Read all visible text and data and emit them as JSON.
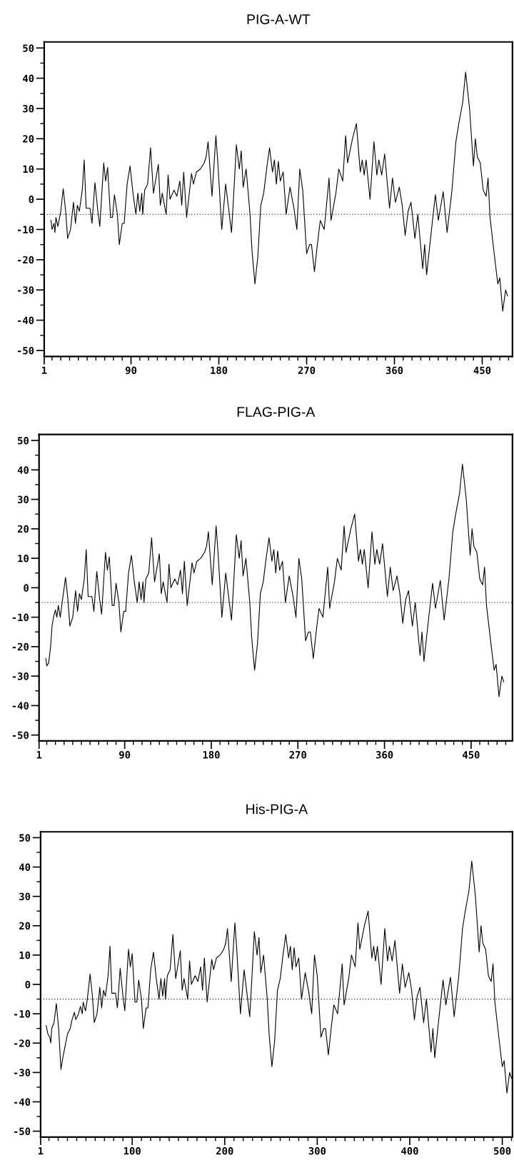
{
  "chart_data": [
    {
      "type": "line",
      "title": "PIG-A-WT",
      "xlim": [
        1,
        481
      ],
      "ylim": [
        -52,
        52
      ],
      "xticks": [
        1,
        {
          "value": 9,
          "label": null
        },
        {
          "value": 18,
          "label": null
        },
        {
          "value": 27,
          "label": null
        },
        {
          "value": 36,
          "label": null
        },
        {
          "value": 45,
          "label": null
        },
        {
          "value": 54,
          "label": null
        },
        {
          "value": 63,
          "label": null
        },
        {
          "value": 72,
          "label": null
        },
        {
          "value": 81,
          "label": null
        },
        90,
        {
          "value": 99,
          "label": null
        },
        {
          "value": 108,
          "label": null
        },
        {
          "value": 117,
          "label": null
        },
        {
          "value": 126,
          "label": null
        },
        {
          "value": 135,
          "label": null
        },
        {
          "value": 144,
          "label": null
        },
        {
          "value": 153,
          "label": null
        },
        {
          "value": 162,
          "label": null
        },
        {
          "value": 171,
          "label": null
        },
        180,
        {
          "value": 189,
          "label": null
        },
        {
          "value": 198,
          "label": null
        },
        {
          "value": 207,
          "label": null
        },
        {
          "value": 216,
          "label": null
        },
        {
          "value": 225,
          "label": null
        },
        {
          "value": 234,
          "label": null
        },
        {
          "value": 243,
          "label": null
        },
        {
          "value": 252,
          "label": null
        },
        {
          "value": 261,
          "label": null
        },
        270,
        {
          "value": 279,
          "label": null
        },
        {
          "value": 288,
          "label": null
        },
        {
          "value": 297,
          "label": null
        },
        {
          "value": 306,
          "label": null
        },
        {
          "value": 315,
          "label": null
        },
        {
          "value": 324,
          "label": null
        },
        {
          "value": 333,
          "label": null
        },
        {
          "value": 342,
          "label": null
        },
        {
          "value": 351,
          "label": null
        },
        360,
        {
          "value": 369,
          "label": null
        },
        {
          "value": 378,
          "label": null
        },
        {
          "value": 387,
          "label": null
        },
        {
          "value": 396,
          "label": null
        },
        {
          "value": 405,
          "label": null
        },
        {
          "value": 414,
          "label": null
        },
        {
          "value": 423,
          "label": null
        },
        {
          "value": 432,
          "label": null
        },
        {
          "value": 441,
          "label": null
        },
        450,
        {
          "value": 459,
          "label": null
        },
        {
          "value": 468,
          "label": null
        },
        {
          "value": 477,
          "label": null
        }
      ],
      "yticks": [
        -50,
        {
          "value": -45,
          "label": null
        },
        -40,
        {
          "value": -35,
          "label": null
        },
        -30,
        {
          "value": -25,
          "label": null
        },
        -20,
        {
          "value": -15,
          "label": null
        },
        -10,
        {
          "value": -5,
          "label": null
        },
        0,
        {
          "value": 5,
          "label": null
        },
        10,
        {
          "value": 15,
          "label": null
        },
        20,
        {
          "value": 25,
          "label": null
        },
        30,
        {
          "value": 35,
          "label": null
        },
        40,
        {
          "value": 45,
          "label": null
        },
        50
      ],
      "ref_lines": [
        {
          "axis": "y",
          "value": -5,
          "color": "#000000",
          "line_style": "dotted"
        }
      ],
      "series": [
        {
          "color": "#000000",
          "x": [
            8,
            9,
            11,
            12,
            13,
            15,
            18,
            20.5,
            23,
            25,
            28,
            31,
            33,
            35,
            37,
            40,
            42,
            44,
            48,
            50,
            53,
            56,
            58,
            62,
            64,
            66,
            69,
            71,
            73,
            76,
            78,
            81,
            83,
            86,
            89,
            92,
            95,
            97,
            99,
            101,
            102,
            104,
            107,
            110,
            113,
            118,
            120,
            122,
            126,
            128,
            130,
            134,
            137,
            140,
            142,
            144,
            147,
            152,
            154,
            157,
            161,
            165,
            167,
            169,
            171,
            173,
            177,
            179,
            183,
            187,
            190,
            193,
            195,
            198,
            201,
            203,
            205,
            208,
            212,
            214,
            217,
            220,
            223,
            226,
            229,
            232,
            235,
            237,
            239,
            241,
            243,
            246,
            249,
            253,
            257,
            260,
            263,
            266,
            270,
            273,
            275,
            278,
            281,
            284,
            288,
            293,
            295,
            300,
            303,
            307,
            310,
            312,
            317,
            321,
            325,
            327,
            329,
            331,
            335,
            339,
            342,
            344,
            347,
            350,
            355,
            358,
            361,
            365,
            368,
            371,
            374,
            377,
            381,
            384,
            389,
            391,
            393,
            397,
            402,
            405,
            410,
            414,
            419,
            423,
            426,
            430,
            433,
            437,
            441,
            443,
            445,
            448,
            451,
            454,
            456,
            458,
            463,
            466,
            468,
            471,
            474,
            476
          ],
          "values": [
            -7,
            -10,
            -8,
            -11,
            -6,
            -9,
            -4,
            3.5,
            -4,
            -13,
            -10,
            -1,
            -8,
            -2,
            -4,
            3,
            13,
            -3,
            -3,
            -8,
            5.5,
            -4,
            -9,
            12,
            6,
            10.5,
            -6,
            -6,
            1.5,
            -5,
            -15,
            -8,
            -8,
            5,
            11,
            2,
            -5,
            2,
            -4,
            2,
            -5,
            3,
            5,
            17,
            2,
            11.5,
            -2,
            2,
            -5,
            8,
            0,
            3,
            1,
            6,
            -2,
            9,
            -6,
            8.5,
            5,
            9,
            10,
            12,
            14,
            19,
            10,
            1,
            21,
            12,
            -10,
            5,
            -3,
            -11,
            0,
            18,
            10,
            16,
            4,
            10,
            -5,
            -17,
            -28,
            -19,
            -2,
            2,
            10,
            17,
            9,
            13,
            5,
            12.5,
            6,
            9,
            -5,
            4,
            -3,
            -10,
            10,
            3,
            -18,
            -15,
            -15,
            -24,
            -15,
            -7,
            -10,
            7,
            -7,
            2,
            10,
            6,
            21,
            12,
            20,
            25,
            9,
            13,
            8,
            13,
            0,
            19,
            8,
            13,
            8,
            15,
            -3,
            7,
            -1,
            4,
            -2,
            -12,
            -4,
            -1,
            -13,
            -5,
            -23,
            -15,
            -25,
            -13,
            1.5,
            -7,
            2.5,
            -11,
            3,
            19,
            25,
            32,
            42,
            30,
            11,
            20,
            14,
            12,
            3,
            1,
            7,
            -6,
            -20,
            -28,
            -26,
            -37,
            -30,
            -32
          ]
        }
      ]
    },
    {
      "type": "line",
      "title": "FLAG-PIG-A",
      "xlim": [
        1,
        493
      ],
      "ylim": [
        -52,
        52
      ],
      "xticks": [
        1,
        {
          "value": 9,
          "label": null
        },
        {
          "value": 18,
          "label": null
        },
        {
          "value": 27,
          "label": null
        },
        {
          "value": 36,
          "label": null
        },
        {
          "value": 45,
          "label": null
        },
        {
          "value": 54,
          "label": null
        },
        {
          "value": 63,
          "label": null
        },
        {
          "value": 72,
          "label": null
        },
        {
          "value": 81,
          "label": null
        },
        90,
        {
          "value": 99,
          "label": null
        },
        {
          "value": 108,
          "label": null
        },
        {
          "value": 117,
          "label": null
        },
        {
          "value": 126,
          "label": null
        },
        {
          "value": 135,
          "label": null
        },
        {
          "value": 144,
          "label": null
        },
        {
          "value": 153,
          "label": null
        },
        {
          "value": 162,
          "label": null
        },
        {
          "value": 171,
          "label": null
        },
        180,
        {
          "value": 189,
          "label": null
        },
        {
          "value": 198,
          "label": null
        },
        {
          "value": 207,
          "label": null
        },
        {
          "value": 216,
          "label": null
        },
        {
          "value": 225,
          "label": null
        },
        {
          "value": 234,
          "label": null
        },
        {
          "value": 243,
          "label": null
        },
        {
          "value": 252,
          "label": null
        },
        {
          "value": 261,
          "label": null
        },
        270,
        {
          "value": 279,
          "label": null
        },
        {
          "value": 288,
          "label": null
        },
        {
          "value": 297,
          "label": null
        },
        {
          "value": 306,
          "label": null
        },
        {
          "value": 315,
          "label": null
        },
        {
          "value": 324,
          "label": null
        },
        {
          "value": 333,
          "label": null
        },
        {
          "value": 342,
          "label": null
        },
        {
          "value": 351,
          "label": null
        },
        360,
        {
          "value": 369,
          "label": null
        },
        {
          "value": 378,
          "label": null
        },
        {
          "value": 387,
          "label": null
        },
        {
          "value": 396,
          "label": null
        },
        {
          "value": 405,
          "label": null
        },
        {
          "value": 414,
          "label": null
        },
        {
          "value": 423,
          "label": null
        },
        {
          "value": 432,
          "label": null
        },
        {
          "value": 441,
          "label": null
        },
        450,
        {
          "value": 459,
          "label": null
        },
        {
          "value": 468,
          "label": null
        },
        {
          "value": 477,
          "label": null
        },
        {
          "value": 486,
          "label": null
        }
      ],
      "yticks": [
        -50,
        {
          "value": -45,
          "label": null
        },
        -40,
        {
          "value": -35,
          "label": null
        },
        -30,
        {
          "value": -25,
          "label": null
        },
        -20,
        {
          "value": -15,
          "label": null
        },
        -10,
        {
          "value": -5,
          "label": null
        },
        0,
        {
          "value": 5,
          "label": null
        },
        10,
        {
          "value": 15,
          "label": null
        },
        20,
        {
          "value": 25,
          "label": null
        },
        30,
        {
          "value": 35,
          "label": null
        },
        40,
        {
          "value": 45,
          "label": null
        },
        50
      ],
      "ref_lines": [
        {
          "axis": "y",
          "value": -5,
          "color": "#000000",
          "line_style": "dotted"
        }
      ],
      "series": [
        {
          "color": "#000000",
          "x": [
            8,
            9,
            11,
            13,
            14.5,
            16,
            18,
            19.5,
            21,
            23,
            25,
            28.5,
            31,
            33,
            36,
            39,
            41,
            43,
            45,
            48,
            50,
            52,
            56,
            58,
            61,
            64,
            66,
            70,
            72,
            74,
            77,
            79,
            81,
            84,
            86,
            89,
            91,
            94,
            97,
            100,
            103,
            105,
            107,
            109,
            110,
            112,
            115,
            118,
            121,
            126,
            128,
            130,
            134,
            136,
            138,
            142,
            145,
            148,
            150,
            152,
            155,
            160,
            162,
            165,
            169,
            173,
            175,
            177,
            179,
            181,
            185,
            187,
            191,
            195,
            198,
            201,
            203,
            206,
            209,
            211,
            213,
            216,
            220,
            222,
            225,
            228,
            231,
            234,
            237,
            240,
            243,
            245,
            247,
            249,
            251,
            254,
            257,
            261,
            265,
            268,
            271,
            274,
            278,
            281,
            283,
            286,
            289,
            292,
            296,
            301,
            303,
            308,
            311,
            315,
            318,
            320,
            325,
            329,
            333,
            335,
            337,
            339,
            343,
            347,
            350,
            352,
            355,
            358,
            363,
            366,
            369,
            373,
            376,
            379,
            382,
            385,
            389,
            392,
            397,
            399,
            401,
            405,
            410,
            413,
            418,
            422,
            427,
            431,
            434,
            438,
            441,
            445,
            449,
            451,
            453,
            456,
            459,
            462,
            464,
            466,
            471,
            474,
            476,
            479,
            482,
            484
          ],
          "values": [
            -24,
            -26.5,
            -25.5,
            -20,
            -13,
            -10,
            -7.5,
            -10,
            -6,
            -10,
            -5,
            3.5,
            -4,
            -13,
            -10,
            -1,
            -8,
            -2,
            -4,
            3,
            13,
            -3,
            -3,
            -8,
            5.5,
            -4,
            -9,
            12,
            6,
            10.5,
            -6,
            -6,
            1.5,
            -5,
            -15,
            -8,
            -8,
            5,
            11,
            2,
            -5,
            2,
            -4,
            2,
            -5,
            3,
            5,
            17,
            2,
            11.5,
            -2,
            2,
            -5,
            8,
            0,
            3,
            1,
            6,
            -2,
            9,
            -6,
            8.5,
            5,
            9,
            10,
            12,
            14,
            19,
            10,
            1,
            21,
            12,
            -10,
            5,
            -3,
            -11,
            0,
            18,
            10,
            16,
            4,
            10,
            -5,
            -17,
            -28,
            -19,
            -2,
            2,
            10,
            17,
            9,
            13,
            5,
            12.5,
            6,
            9,
            -5,
            4,
            -3,
            -10,
            10,
            3,
            -18,
            -15,
            -15,
            -24,
            -15,
            -7,
            -10,
            7,
            -7,
            2,
            10,
            6,
            21,
            12,
            20,
            25,
            9,
            13,
            8,
            13,
            0,
            19,
            8,
            13,
            8,
            15,
            -3,
            7,
            -1,
            4,
            -2,
            -12,
            -4,
            -1,
            -13,
            -5,
            -23,
            -15,
            -25,
            -13,
            1.5,
            -7,
            2.5,
            -11,
            3,
            19,
            25,
            32,
            42,
            30,
            11,
            20,
            14,
            12,
            3,
            1,
            7,
            -6,
            -20,
            -28,
            -26,
            -37,
            -30,
            -32
          ]
        }
      ]
    },
    {
      "type": "line",
      "title": "His-PIG-A",
      "xlim": [
        1,
        511
      ],
      "ylim": [
        -52,
        52
      ],
      "xticks": [
        1,
        {
          "value": 10,
          "label": null
        },
        {
          "value": 20,
          "label": null
        },
        {
          "value": 30,
          "label": null
        },
        {
          "value": 40,
          "label": null
        },
        {
          "value": 50,
          "label": null
        },
        {
          "value": 60,
          "label": null
        },
        {
          "value": 70,
          "label": null
        },
        {
          "value": 80,
          "label": null
        },
        {
          "value": 90,
          "label": null
        },
        100,
        {
          "value": 110,
          "label": null
        },
        {
          "value": 120,
          "label": null
        },
        {
          "value": 130,
          "label": null
        },
        {
          "value": 140,
          "label": null
        },
        {
          "value": 150,
          "label": null
        },
        {
          "value": 160,
          "label": null
        },
        {
          "value": 170,
          "label": null
        },
        {
          "value": 180,
          "label": null
        },
        {
          "value": 190,
          "label": null
        },
        200,
        {
          "value": 210,
          "label": null
        },
        {
          "value": 220,
          "label": null
        },
        {
          "value": 230,
          "label": null
        },
        {
          "value": 240,
          "label": null
        },
        {
          "value": 250,
          "label": null
        },
        {
          "value": 260,
          "label": null
        },
        {
          "value": 270,
          "label": null
        },
        {
          "value": 280,
          "label": null
        },
        {
          "value": 290,
          "label": null
        },
        300,
        {
          "value": 310,
          "label": null
        },
        {
          "value": 320,
          "label": null
        },
        {
          "value": 330,
          "label": null
        },
        {
          "value": 340,
          "label": null
        },
        {
          "value": 350,
          "label": null
        },
        {
          "value": 360,
          "label": null
        },
        {
          "value": 370,
          "label": null
        },
        {
          "value": 380,
          "label": null
        },
        {
          "value": 390,
          "label": null
        },
        400,
        {
          "value": 410,
          "label": null
        },
        {
          "value": 420,
          "label": null
        },
        {
          "value": 430,
          "label": null
        },
        {
          "value": 440,
          "label": null
        },
        {
          "value": 450,
          "label": null
        },
        {
          "value": 460,
          "label": null
        },
        {
          "value": 470,
          "label": null
        },
        {
          "value": 480,
          "label": null
        },
        {
          "value": 490,
          "label": null
        },
        500,
        {
          "value": 510,
          "label": null
        }
      ],
      "yticks": [
        -50,
        {
          "value": -45,
          "label": null
        },
        -40,
        {
          "value": -35,
          "label": null
        },
        -30,
        {
          "value": -25,
          "label": null
        },
        -20,
        {
          "value": -15,
          "label": null
        },
        -10,
        {
          "value": -5,
          "label": null
        },
        0,
        {
          "value": 5,
          "label": null
        },
        10,
        {
          "value": 15,
          "label": null
        },
        20,
        {
          "value": 25,
          "label": null
        },
        30,
        {
          "value": 35,
          "label": null
        },
        40,
        {
          "value": 45,
          "label": null
        },
        50
      ],
      "ref_lines": [
        {
          "axis": "y",
          "value": -5,
          "color": "#000000",
          "line_style": "dotted"
        }
      ],
      "series": [
        {
          "color": "#000000",
          "x": [
            7,
            9,
            11,
            12,
            13,
            15.5,
            18,
            20.5,
            23,
            25,
            27.5,
            30,
            33,
            35,
            37.5,
            39,
            42,
            44,
            46,
            47,
            49.5,
            51.5,
            54.5,
            57,
            59,
            62,
            65,
            67,
            69,
            71,
            74,
            76,
            78,
            82,
            84,
            87,
            90,
            92,
            96,
            98,
            100,
            103,
            105,
            107,
            110,
            112,
            115,
            117,
            120,
            123,
            126,
            129,
            131,
            133,
            135,
            136,
            138,
            141,
            144,
            147,
            152,
            154,
            156,
            160,
            162,
            164,
            168,
            171,
            174,
            176,
            178,
            181,
            186,
            188,
            191,
            195,
            199,
            201,
            203,
            205,
            207,
            211,
            213,
            217,
            221,
            224,
            227,
            229,
            232,
            235,
            237,
            239,
            242,
            246,
            248,
            251,
            254,
            257,
            260,
            263,
            266,
            269,
            271,
            273,
            275,
            277,
            280,
            283,
            287,
            291,
            294,
            297,
            300,
            304,
            307,
            309,
            312,
            315,
            318,
            322,
            327,
            329,
            334,
            337,
            341,
            344,
            346,
            351,
            355,
            359,
            361,
            363,
            365,
            369,
            373,
            376,
            378,
            381,
            384,
            389,
            392,
            395,
            399,
            402,
            405,
            408,
            411,
            415,
            418,
            423,
            425,
            427,
            431,
            436,
            439,
            444,
            448,
            453,
            457,
            460,
            464,
            467,
            471,
            475,
            477,
            479,
            482,
            485,
            488,
            490,
            492,
            497,
            500,
            502,
            505,
            508,
            510
          ],
          "values": [
            -14,
            -17,
            -18,
            -20,
            -15,
            -13,
            -6.5,
            -15,
            -29,
            -25,
            -21,
            -17,
            -15,
            -12,
            -9.5,
            -12,
            -10,
            -7.5,
            -10,
            -6,
            -9,
            -5,
            3.5,
            -4,
            -13,
            -10,
            -1,
            -8,
            -2,
            -4,
            3,
            13,
            -3,
            -3,
            -8,
            5.5,
            -4,
            -9,
            12,
            6,
            10.5,
            -6,
            -6,
            1.5,
            -5,
            -15,
            -8,
            -8,
            5,
            11,
            2,
            -5,
            2,
            -4,
            2,
            -5,
            3,
            5,
            17,
            2,
            11.5,
            -2,
            2,
            -5,
            8,
            0,
            3,
            1,
            6,
            -2,
            9,
            -6,
            8.5,
            5,
            9,
            10,
            12,
            14,
            19,
            10,
            1,
            21,
            12,
            -10,
            5,
            -3,
            -11,
            0,
            18,
            10,
            16,
            4,
            10,
            -5,
            -17,
            -28,
            -19,
            -2,
            2,
            10,
            17,
            9,
            13,
            5,
            12.5,
            6,
            9,
            -5,
            4,
            -3,
            -10,
            10,
            3,
            -18,
            -15,
            -15,
            -24,
            -15,
            -7,
            -10,
            7,
            -7,
            2,
            10,
            6,
            21,
            12,
            20,
            25,
            9,
            13,
            8,
            13,
            0,
            19,
            8,
            13,
            8,
            15,
            -3,
            7,
            -1,
            4,
            -2,
            -12,
            -4,
            -1,
            -13,
            -5,
            -23,
            -15,
            -25,
            -13,
            1.5,
            -7,
            2.5,
            -11,
            3,
            19,
            25,
            32,
            42,
            30,
            11,
            20,
            14,
            12,
            3,
            1,
            7,
            -6,
            -20,
            -28,
            -26,
            -37,
            -30,
            -32
          ]
        }
      ]
    }
  ]
}
